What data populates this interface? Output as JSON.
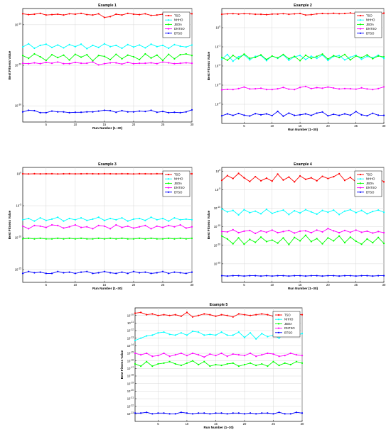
{
  "figure": {
    "tick_exponent_prefix": "10"
  },
  "chart_data": [
    {
      "type": "line",
      "title": "Example 1",
      "xlabel": "Run Number (1–30)",
      "ylabel": "Best Fitness Value",
      "xlim": [
        1,
        30
      ],
      "xticks": [
        5,
        10,
        15,
        20,
        25,
        30
      ],
      "yscale": "log",
      "ylim_exp": [
        -34,
        -6
      ],
      "ytick_exps": [
        -10,
        -20,
        -30
      ],
      "grid": true,
      "legend_position": "top-right",
      "series": [
        {
          "name": "TSO",
          "color": "#ff0000",
          "exps": [
            -7.3,
            -7.5,
            -7.4,
            -7.2,
            -7.6,
            -7.5,
            -7.4,
            -7.6,
            -7.3,
            -7.4,
            -7.2,
            -7.5,
            -7.6,
            -7.3,
            -8.2,
            -8.0,
            -7.4,
            -7.6,
            -7.2,
            -7.4,
            -7.5,
            -7.3,
            -7.7,
            -7.6,
            -7.4,
            -7.3,
            -7.6,
            -7.5,
            -7.4,
            -7.3
          ]
        },
        {
          "name": "NHHO",
          "color": "#00ffff",
          "exps": [
            -15.5,
            -14.7,
            -15.8,
            -15.1,
            -14.8,
            -15.6,
            -15.0,
            -15.7,
            -14.9,
            -15.4,
            -14.8,
            -15.9,
            -15.1,
            -15.6,
            -14.7,
            -15.4,
            -15.1,
            -15.8,
            -14.9,
            -15.5,
            -15.0,
            -15.7,
            -14.8,
            -15.4,
            -15.1,
            -15.8,
            -14.9,
            -15.3,
            -15.5,
            -15.0
          ]
        },
        {
          "name": "JBOA",
          "color": "#00ff00",
          "exps": [
            -17.6,
            -18.3,
            -17.2,
            -17.9,
            -18.8,
            -17.4,
            -18.1,
            -17.5,
            -18.7,
            -17.3,
            -18.0,
            -17.4,
            -18.9,
            -17.6,
            -17.8,
            -18.6,
            -17.3,
            -18.4,
            -17.5,
            -17.9,
            -18.6,
            -17.2,
            -18.2,
            -17.5,
            -18.8,
            -17.3,
            -18.4,
            -17.4,
            -17.2,
            -17.6
          ]
        },
        {
          "name": "DNTSO",
          "color": "#ff00ff",
          "exps": [
            -19.5,
            -19.6,
            -19.4,
            -19.6,
            -19.3,
            -19.5,
            -19.2,
            -19.6,
            -19.6,
            -19.3,
            -19.5,
            -19.5,
            -19.2,
            -19.9,
            -19.6,
            -19.4,
            -19.4,
            -19.7,
            -19.3,
            -19.6,
            -19.5,
            -19.5,
            -19.4,
            -19.6,
            -19.2,
            -19.4,
            -19.6,
            -19.5,
            -19.4,
            -19.5
          ]
        },
        {
          "name": "BTSO",
          "color": "#0000ff",
          "exps": [
            -31.5,
            -31.1,
            -31.2,
            -31.7,
            -31.7,
            -31.3,
            -31.5,
            -31.5,
            -31.7,
            -31.6,
            -31.6,
            -31.5,
            -31.5,
            -31.3,
            -31.1,
            -31.2,
            -31.6,
            -31.2,
            -31.5,
            -31.5,
            -31.3,
            -31.4,
            -31.1,
            -31.6,
            -31.4,
            -31.7,
            -31.6,
            -31.7,
            -31.5,
            -31.0
          ]
        }
      ]
    },
    {
      "type": "line",
      "title": "Example 2",
      "xlabel": "Run Number (1–30)",
      "ylabel": "Best Fitness Value",
      "xlim": [
        1,
        30
      ],
      "xticks": [
        5,
        10,
        15,
        20,
        25,
        30
      ],
      "yscale": "log",
      "ylim_exp": [
        -5,
        1
      ],
      "ytick_exps": [
        0,
        -1,
        -2,
        -3,
        -4
      ],
      "grid": true,
      "legend_position": "top-right",
      "series": [
        {
          "name": "TSO",
          "color": "#ff0000",
          "exps": [
            0.7,
            0.72,
            0.73,
            0.71,
            0.73,
            0.72,
            0.7,
            0.7,
            0.68,
            0.71,
            0.71,
            0.73,
            0.7,
            0.72,
            0.74,
            0.66,
            0.68,
            0.72,
            0.74,
            0.73,
            0.75,
            0.73,
            0.74,
            0.77,
            0.72,
            0.72,
            0.74,
            0.72,
            0.65,
            0.76
          ]
        },
        {
          "name": "NHHO",
          "color": "#00ffff",
          "exps": [
            -1.65,
            -1.4,
            -1.75,
            -1.52,
            -1.42,
            -1.68,
            -1.5,
            -1.45,
            -1.72,
            -1.48,
            -1.6,
            -1.42,
            -1.7,
            -1.52,
            -1.45,
            -1.66,
            -1.49,
            -1.6,
            -1.43,
            -1.71,
            -1.5,
            -1.46,
            -1.68,
            -1.54,
            -1.44,
            -1.65,
            -1.5,
            -1.57,
            -1.44,
            -1.6
          ]
        },
        {
          "name": "JBOA",
          "color": "#00ff00",
          "exps": [
            -1.55,
            -1.7,
            -1.45,
            -1.62,
            -1.38,
            -1.6,
            -1.55,
            -1.42,
            -1.66,
            -1.48,
            -1.58,
            -1.4,
            -1.62,
            -1.5,
            -1.72,
            -1.44,
            -1.6,
            -1.5,
            -1.38,
            -1.64,
            -1.46,
            -1.56,
            -1.4,
            -1.68,
            -1.48,
            -1.56,
            -1.42,
            -1.62,
            -1.48,
            -1.52
          ]
        },
        {
          "name": "DNTSO",
          "color": "#ff00ff",
          "exps": [
            -3.25,
            -3.22,
            -3.23,
            -3.18,
            -3.1,
            -3.2,
            -3.19,
            -3.16,
            -3.23,
            -3.23,
            -3.19,
            -3.12,
            -3.21,
            -3.23,
            -3.12,
            -3.07,
            -3.18,
            -3.13,
            -3.16,
            -3.1,
            -3.15,
            -3.2,
            -3.18,
            -3.19,
            -3.21,
            -3.14,
            -3.2,
            -3.23,
            -3.18,
            -3.09
          ]
        },
        {
          "name": "BTSO",
          "color": "#0000ff",
          "exps": [
            -4.6,
            -4.5,
            -4.58,
            -4.48,
            -4.57,
            -4.61,
            -4.49,
            -4.55,
            -4.5,
            -4.59,
            -4.37,
            -4.62,
            -4.46,
            -4.58,
            -4.55,
            -4.5,
            -4.58,
            -4.46,
            -4.4,
            -4.6,
            -4.52,
            -4.58,
            -4.5,
            -4.57,
            -4.38,
            -4.55,
            -4.6,
            -4.47,
            -4.57,
            -4.58
          ]
        }
      ]
    },
    {
      "type": "line",
      "title": "Example 3",
      "xlabel": "Run Number (1–30)",
      "ylabel": "Best Fitness Value",
      "xlim": [
        1,
        30
      ],
      "xticks": [
        5,
        10,
        15,
        20,
        25,
        30
      ],
      "yscale": "log",
      "ylim_exp": [
        -17,
        1
      ],
      "ytick_exps": [
        0,
        -5,
        -10,
        -15
      ],
      "grid": true,
      "legend_position": "top-right",
      "series": [
        {
          "name": "TSO",
          "color": "#ff0000",
          "exps": [
            0.0,
            -0.02,
            0.01,
            -0.01,
            0.0,
            0.01,
            -0.02,
            0.0,
            0.01,
            -0.01,
            0.0,
            0.01,
            0.0,
            -0.01,
            0.01,
            0.0,
            -0.01,
            0.01,
            0.0,
            -0.02,
            0.01,
            0.0,
            -0.01,
            0.01,
            0.0,
            0.01,
            -0.01,
            0.0,
            0.01,
            0.0
          ]
        },
        {
          "name": "NHHO",
          "color": "#00ffff",
          "exps": [
            -7.2,
            -7.0,
            -7.4,
            -6.9,
            -7.3,
            -7.1,
            -6.8,
            -7.4,
            -7.0,
            -7.2,
            -6.9,
            -7.3,
            -7.1,
            -6.8,
            -7.3,
            -7.0,
            -7.2,
            -6.9,
            -7.4,
            -7.1,
            -7.0,
            -7.3,
            -6.8,
            -7.2,
            -7.0,
            -7.4,
            -6.9,
            -7.2,
            -7.1,
            -7.2
          ]
        },
        {
          "name": "JBOA",
          "color": "#00ff00",
          "exps": [
            -10.2,
            -10.1,
            -10.2,
            -10.1,
            -10.2,
            -10.2,
            -10.1,
            -10.2,
            -10.1,
            -10.2,
            -10.1,
            -10.2,
            -10.2,
            -10.1,
            -10.2,
            -10.1,
            -10.2,
            -10.1,
            -10.2,
            -10.2,
            -10.1,
            -10.2,
            -10.1,
            -10.2,
            -10.2,
            -10.1,
            -10.2,
            -10.1,
            -10.2,
            -10.1
          ]
        },
        {
          "name": "DNTSO",
          "color": "#ff00ff",
          "exps": [
            -8.2,
            -8.6,
            -8.1,
            -8.2,
            -8.4,
            -8.0,
            -8.1,
            -8.5,
            -8.3,
            -8.0,
            -8.4,
            -8.3,
            -8.6,
            -8.1,
            -8.2,
            -8.6,
            -8.0,
            -8.4,
            -8.2,
            -8.5,
            -8.3,
            -8.1,
            -8.6,
            -8.2,
            -8.4,
            -8.1,
            -8.3,
            -8.0,
            -8.5,
            -8.3
          ]
        },
        {
          "name": "BTSO",
          "color": "#0000ff",
          "exps": [
            -15.6,
            -15.3,
            -15.5,
            -15.4,
            -15.6,
            -15.6,
            -15.3,
            -15.5,
            -15.4,
            -15.6,
            -15.4,
            -15.3,
            -15.6,
            -15.5,
            -15.3,
            -15.5,
            -15.6,
            -15.4,
            -15.6,
            -15.3,
            -15.5,
            -15.4,
            -15.6,
            -15.5,
            -15.3,
            -15.6,
            -15.4,
            -15.5,
            -15.6,
            -15.4
          ]
        }
      ]
    },
    {
      "type": "line",
      "title": "Example 4",
      "xlabel": "Run Number (1–30)",
      "ylabel": "Best Fitness Value",
      "xlim": [
        1,
        30
      ],
      "xticks": [
        5,
        10,
        15,
        20,
        25,
        30
      ],
      "yscale": "log",
      "ylim_exp": [
        -30,
        1
      ],
      "ytick_exps": [
        0,
        -5,
        -10,
        -15,
        -20,
        -25
      ],
      "grid": true,
      "legend_position": "top-right",
      "series": [
        {
          "name": "TSO",
          "color": "#ff0000",
          "exps": [
            -2.5,
            -1.2,
            -2.0,
            -0.6,
            -1.8,
            -2.8,
            -1.5,
            -2.6,
            -1.9,
            -2.7,
            -0.8,
            -2.4,
            -1.6,
            -2.9,
            -1.3,
            -2.2,
            -1.8,
            -2.6,
            -1.4,
            -2.0,
            -1.5,
            -0.7,
            -2.5,
            -1.7,
            -2.9,
            -1.5,
            -2.3,
            -2.6,
            -1.8,
            -2.9
          ]
        },
        {
          "name": "NHHO",
          "color": "#00ffff",
          "exps": [
            -10.2,
            -11.0,
            -10.6,
            -11.8,
            -10.4,
            -11.2,
            -10.8,
            -11.5,
            -10.3,
            -11.4,
            -10.9,
            -10.5,
            -11.7,
            -10.7,
            -11.3,
            -10.4,
            -11.0,
            -11.6,
            -10.6,
            -11.1,
            -10.5,
            -11.7,
            -10.8,
            -10.4,
            -11.2,
            -10.6,
            -11.5,
            -10.9,
            -10.5,
            -11.1
          ]
        },
        {
          "name": "JBOA",
          "color": "#00ff00",
          "exps": [
            -17.5,
            -18.3,
            -19.6,
            -18.0,
            -19.7,
            -18.4,
            -19.2,
            -17.8,
            -19.0,
            -18.6,
            -19.4,
            -18.0,
            -19.8,
            -17.9,
            -18.8,
            -17.3,
            -19.0,
            -18.2,
            -19.6,
            -18.0,
            -18.8,
            -17.5,
            -19.3,
            -17.8,
            -18.9,
            -19.7,
            -18.3,
            -19.3,
            -17.9,
            -19.5
          ]
        },
        {
          "name": "DNTSO",
          "color": "#ff00ff",
          "exps": [
            -16.3,
            -16.4,
            -15.8,
            -16.6,
            -16.2,
            -16.0,
            -16.8,
            -16.1,
            -16.5,
            -15.9,
            -16.6,
            -16.3,
            -16.0,
            -16.7,
            -16.2,
            -16.1,
            -16.6,
            -15.9,
            -16.4,
            -15.5,
            -16.1,
            -16.6,
            -16.0,
            -16.5,
            -15.9,
            -16.5,
            -16.2,
            -16.7,
            -16.3,
            -16.6
          ]
        },
        {
          "name": "BTSO",
          "color": "#0000ff",
          "exps": [
            -28.2,
            -28.3,
            -28.2,
            -28.2,
            -28.3,
            -28.2,
            -28.2,
            -28.3,
            -28.2,
            -28.3,
            -28.2,
            -28.2,
            -28.3,
            -28.2,
            -28.2,
            -28.3,
            -28.2,
            -28.2,
            -28.3,
            -28.2,
            -28.2,
            -28.3,
            -28.2,
            -28.2,
            -28.3,
            -28.2,
            -28.2,
            -28.3,
            -28.2,
            -28.2
          ]
        }
      ]
    },
    {
      "type": "line",
      "title": "Example 5",
      "xlabel": "Run Number (1–30)",
      "ylabel": "Best Fitness Value",
      "xlim": [
        1,
        30
      ],
      "xticks": [
        5,
        10,
        15,
        20,
        25,
        30
      ],
      "yscale": "log",
      "ylim_exp": [
        -24,
        -9
      ],
      "ytick_exps": [
        -10,
        -11,
        -12,
        -13,
        -14,
        -15,
        -16,
        -17,
        -18,
        -19,
        -20,
        -21,
        -22,
        -23
      ],
      "grid": true,
      "legend_position": "top-right",
      "series": [
        {
          "name": "TSO",
          "color": "#ff0000",
          "exps": [
            -9.7,
            -9.6,
            -9.9,
            -9.8,
            -10.0,
            -9.9,
            -10.0,
            -9.9,
            -10.1,
            -9.6,
            -10.2,
            -10.0,
            -9.8,
            -9.9,
            -10.1,
            -9.9,
            -10.0,
            -10.2,
            -9.8,
            -9.9,
            -10.0,
            -9.9,
            -9.8,
            -9.9,
            -10.1,
            -10.2,
            -9.8,
            -10.0,
            -9.9,
            -9.9
          ]
        },
        {
          "name": "NHHO",
          "color": "#00ffff",
          "exps": [
            -13.3,
            -13.0,
            -12.7,
            -12.6,
            -12.3,
            -12.2,
            -12.5,
            -12.6,
            -12.3,
            -12.6,
            -12.1,
            -12.2,
            -12.6,
            -12.5,
            -12.6,
            -12.2,
            -12.6,
            -12.6,
            -12.2,
            -12.9,
            -12.3,
            -13.1,
            -12.4,
            -12.8,
            -12.6,
            -13.0,
            -12.3,
            -12.1,
            -12.6,
            -12.4
          ]
        },
        {
          "name": "JBOA",
          "color": "#00ff00",
          "exps": [
            -16.4,
            -16.7,
            -16.1,
            -16.7,
            -16.4,
            -16.3,
            -16.1,
            -16.4,
            -16.6,
            -16.3,
            -16.0,
            -16.5,
            -16.1,
            -16.7,
            -16.5,
            -16.6,
            -16.4,
            -16.3,
            -16.7,
            -16.5,
            -16.3,
            -16.6,
            -16.4,
            -16.7,
            -16.1,
            -16.6,
            -16.3,
            -16.5,
            -16.1,
            -16.3
          ]
        },
        {
          "name": "DNTSO",
          "color": "#ff00ff",
          "exps": [
            -15.0,
            -15.2,
            -15.0,
            -15.4,
            -15.3,
            -15.0,
            -15.4,
            -15.2,
            -15.0,
            -15.3,
            -15.0,
            -15.2,
            -15.5,
            -15.1,
            -15.3,
            -15.0,
            -15.4,
            -15.1,
            -15.2,
            -15.3,
            -15.0,
            -15.4,
            -15.2,
            -15.0,
            -15.1,
            -15.4,
            -15.3,
            -15.0,
            -15.2,
            -15.3
          ]
        },
        {
          "name": "BTSO",
          "color": "#0000ff",
          "exps": [
            -22.9,
            -22.9,
            -22.8,
            -23.0,
            -22.9,
            -22.9,
            -23.0,
            -23.0,
            -22.8,
            -22.9,
            -23.0,
            -22.9,
            -22.9,
            -23.0,
            -22.9,
            -22.9,
            -23.0,
            -22.9,
            -22.9,
            -23.0,
            -22.9,
            -23.0,
            -22.9,
            -22.9,
            -23.0,
            -22.8,
            -23.0,
            -23.0,
            -22.8,
            -22.9
          ]
        }
      ]
    }
  ]
}
